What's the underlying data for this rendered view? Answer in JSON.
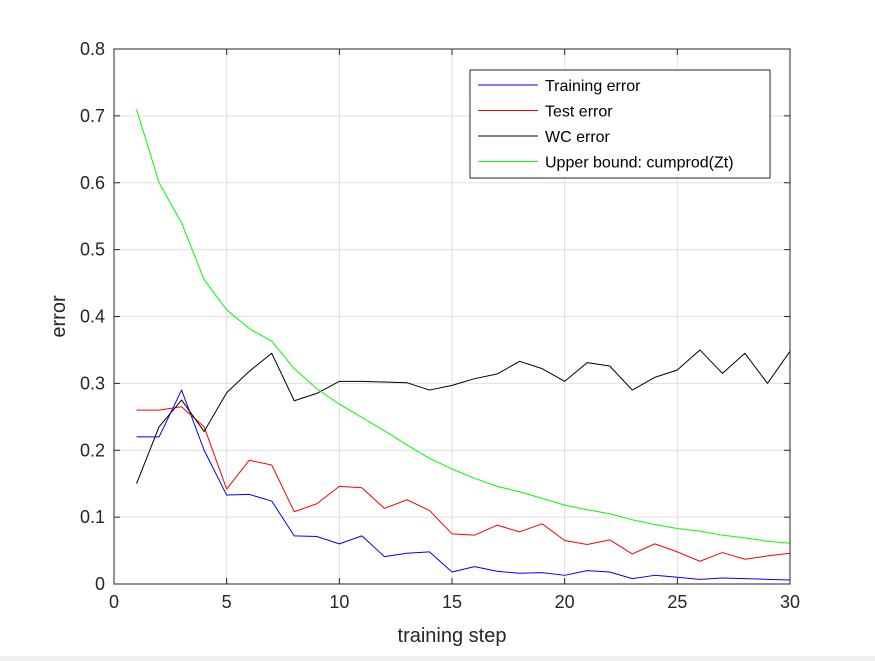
{
  "chart_data": {
    "type": "line",
    "title": "",
    "xlabel": "training step",
    "ylabel": "error",
    "xlim": [
      0,
      30
    ],
    "ylim": [
      0,
      0.8
    ],
    "xticks": [
      0,
      5,
      10,
      15,
      20,
      25,
      30
    ],
    "yticks": [
      0,
      0.1,
      0.2,
      0.3,
      0.4,
      0.5,
      0.6,
      0.7,
      0.8
    ],
    "xtick_labels": [
      "0",
      "5",
      "10",
      "15",
      "20",
      "25",
      "30"
    ],
    "ytick_labels": [
      "0",
      "0.1",
      "0.2",
      "0.3",
      "0.4",
      "0.5",
      "0.6",
      "0.7",
      "0.8"
    ],
    "grid": true,
    "legend_position": "top-right",
    "x": [
      1,
      2,
      3,
      4,
      5,
      6,
      7,
      8,
      9,
      10,
      11,
      12,
      13,
      14,
      15,
      16,
      17,
      18,
      19,
      20,
      21,
      22,
      23,
      24,
      25,
      26,
      27,
      28,
      29,
      30
    ],
    "series": [
      {
        "name": "Training error",
        "color": "#0000ff",
        "values": [
          0.22,
          0.22,
          0.29,
          0.2,
          0.133,
          0.134,
          0.124,
          0.072,
          0.071,
          0.06,
          0.072,
          0.041,
          0.046,
          0.048,
          0.018,
          0.026,
          0.019,
          0.016,
          0.017,
          0.013,
          0.02,
          0.018,
          0.008,
          0.013,
          0.01,
          0.007,
          0.009,
          0.008,
          0.007,
          0.006
        ]
      },
      {
        "name": "Test error",
        "color": "#ff0000",
        "values": [
          0.26,
          0.26,
          0.265,
          0.235,
          0.142,
          0.185,
          0.178,
          0.108,
          0.12,
          0.146,
          0.144,
          0.113,
          0.126,
          0.11,
          0.075,
          0.073,
          0.088,
          0.078,
          0.09,
          0.065,
          0.059,
          0.066,
          0.045,
          0.06,
          0.048,
          0.034,
          0.047,
          0.037,
          0.042,
          0.046
        ]
      },
      {
        "name": "WC error",
        "color": "#000000",
        "values": [
          0.15,
          0.235,
          0.275,
          0.228,
          0.286,
          0.318,
          0.345,
          0.274,
          0.285,
          0.303,
          0.303,
          0.302,
          0.301,
          0.29,
          0.297,
          0.307,
          0.314,
          0.333,
          0.322,
          0.303,
          0.331,
          0.326,
          0.29,
          0.309,
          0.32,
          0.35,
          0.315,
          0.345,
          0.3,
          0.348
        ]
      },
      {
        "name": "Upper bound: cumprod(Zt)",
        "color": "#00ff00",
        "values": [
          0.71,
          0.6,
          0.54,
          0.455,
          0.41,
          0.382,
          0.363,
          0.322,
          0.292,
          0.269,
          0.249,
          0.229,
          0.208,
          0.188,
          0.172,
          0.158,
          0.146,
          0.138,
          0.128,
          0.118,
          0.111,
          0.105,
          0.096,
          0.089,
          0.083,
          0.079,
          0.073,
          0.069,
          0.064,
          0.061
        ]
      }
    ]
  }
}
